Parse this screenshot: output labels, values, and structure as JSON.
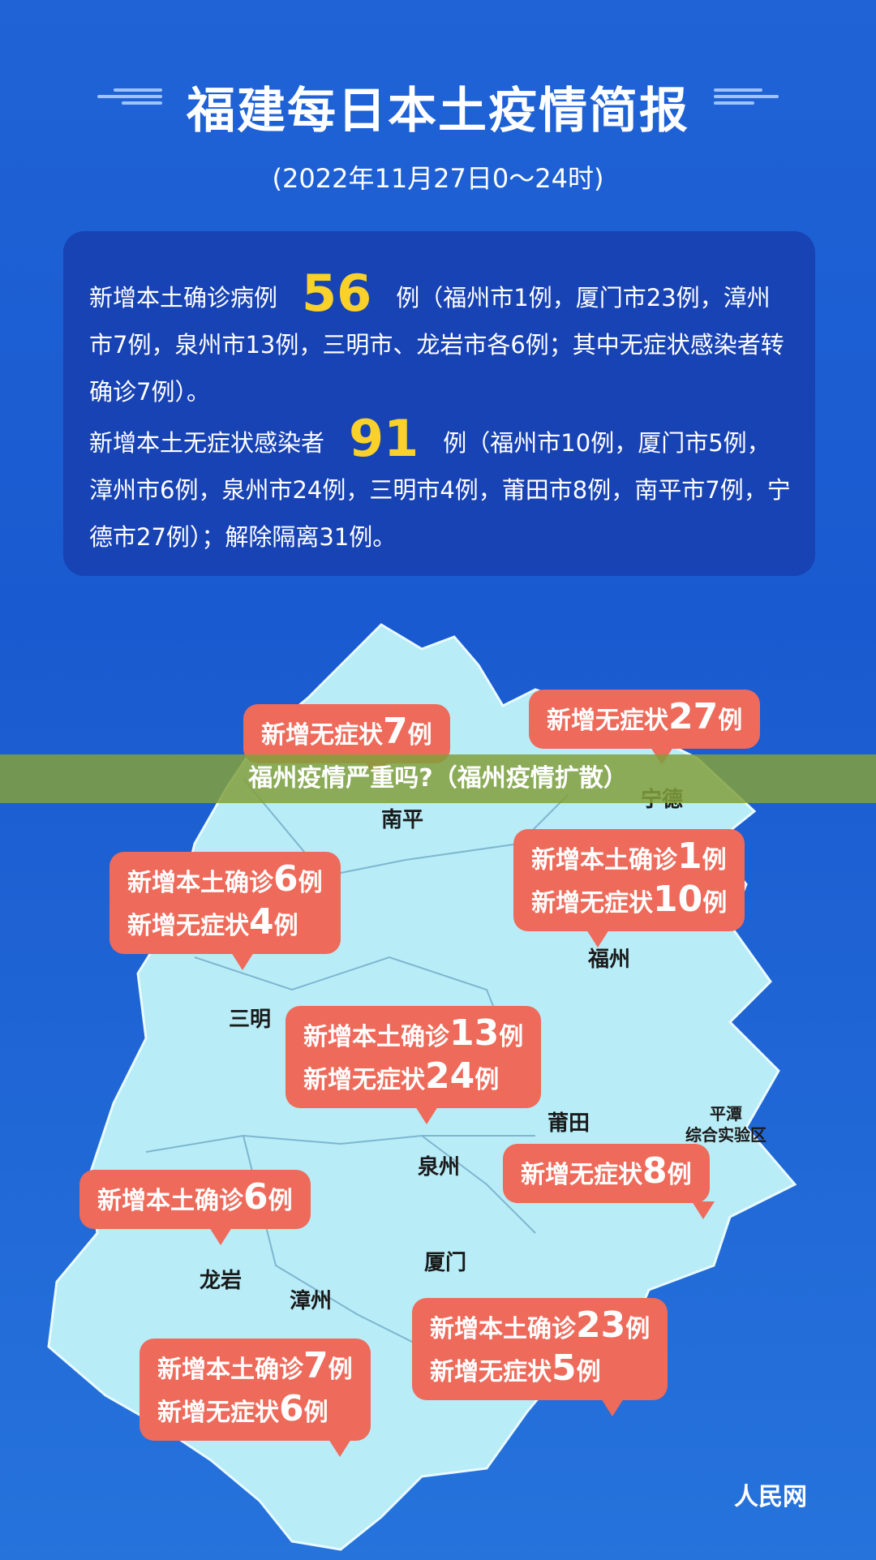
{
  "header": {
    "title": "福建每日本土疫情简报",
    "subtitle": "(2022年11月27日0～24时)"
  },
  "summary": {
    "confirmed_prefix": "新增本土确诊病例",
    "confirmed_count": "56",
    "confirmed_detail": "例（福州市1例，厦门市23例，漳州市7例，泉州市13例，三明市、龙岩市各6例；其中无症状感染者转确诊7例）。",
    "asymptomatic_prefix": "新增本土无症状感染者",
    "asymptomatic_count": "91",
    "asymptomatic_detail": "例（福州市10例，厦门市5例，漳州市6例，泉州市24例，三明市4例，莆田市8例，南平市7例，宁德市27例）；解除隔离31例。"
  },
  "map": {
    "cities": {
      "nanping": "南平",
      "ningde": "宁德",
      "sanming": "三明",
      "fuzhou": "福州",
      "quanzhou": "泉州",
      "putian": "莆田",
      "pingtan": "平潭\n综合实验区",
      "longyan": "龙岩",
      "zhangzhou": "漳州",
      "xiamen": "厦门"
    },
    "bubbles": {
      "nanping": {
        "a_label": "新增无症状",
        "a_num": "7",
        "unit": "例"
      },
      "ningde": {
        "a_label": "新增无症状",
        "a_num": "27",
        "unit": "例"
      },
      "sanming": {
        "c_label": "新增本土确诊",
        "c_num": "6",
        "a_label": "新增无症状",
        "a_num": "4",
        "unit": "例"
      },
      "fuzhou": {
        "c_label": "新增本土确诊",
        "c_num": "1",
        "a_label": "新增无症状",
        "a_num": "10",
        "unit": "例"
      },
      "quanzhou": {
        "c_label": "新增本土确诊",
        "c_num": "13",
        "a_label": "新增无症状",
        "a_num": "24",
        "unit": "例"
      },
      "putian": {
        "a_label": "新增无症状",
        "a_num": "8",
        "unit": "例"
      },
      "longyan": {
        "c_label": "新增本土确诊",
        "c_num": "6",
        "unit": "例"
      },
      "zhangzhou": {
        "c_label": "新增本土确诊",
        "c_num": "7",
        "a_label": "新增无症状",
        "a_num": "6",
        "unit": "例"
      },
      "xiamen": {
        "c_label": "新增本土确诊",
        "c_num": "23",
        "a_label": "新增无症状",
        "a_num": "5",
        "unit": "例"
      }
    }
  },
  "overlay": {
    "banner": "福州疫情严重吗?（福州疫情扩散）"
  },
  "logo": "人民网",
  "colors": {
    "background": "#1f63d6",
    "panel": "#1843b4",
    "highlight": "#f9d12a",
    "bubble": "#ee6a5a",
    "map": "#b8ecf7"
  }
}
